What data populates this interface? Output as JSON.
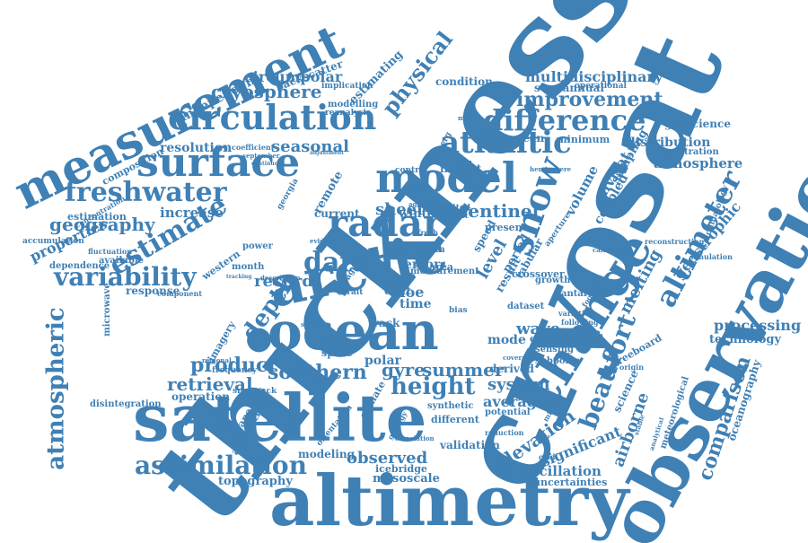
{
  "accent_color": "#3f80b5",
  "background_color": "#ffffff",
  "words": [
    "thickness",
    "cryosat",
    "observation",
    "altimetry",
    "satellite",
    "arctic",
    "ocean",
    "measurement",
    "change",
    "model",
    "radar",
    "surface",
    "circulation",
    "snow",
    "difference",
    "altimeter",
    "freshwater",
    "atlantic",
    "estimate",
    "variability",
    "assimilation",
    "atmospheric",
    "beaufort",
    "data",
    "depth",
    "height",
    "physical",
    "improvement",
    "multidisciplinary",
    "cryosphere",
    "product",
    "retrieval",
    "southern",
    "comparison",
    "elevation",
    "geography",
    "sentinel",
    "melting",
    "airborne",
    "oceanography",
    "processing",
    "technology",
    "topography",
    "observed",
    "seasonal",
    "resolution",
    "increase",
    "estimation",
    "properties",
    "record",
    "sheet",
    "gyre",
    "summer",
    "system",
    "average",
    "wave",
    "mode",
    "level",
    "envisat",
    "volume",
    "geostrophic",
    "distribution",
    "atmosphere",
    "geoscience",
    "climatology",
    "oscillation",
    "uncertainties",
    "mesoscale",
    "icebridge",
    "significant",
    "freeboard",
    "science",
    "meteorological",
    "condition",
    "semiannual",
    "operational",
    "european",
    "coupled",
    "sampling",
    "minimum",
    "penetration",
    "independent",
    "backscatter",
    "circumpolar",
    "estimating",
    "implication",
    "modelling",
    "reanalysis",
    "composition",
    "coefficient",
    "concentration",
    "accumulation",
    "dependence",
    "available",
    "fluctuation",
    "microwave",
    "response",
    "component",
    "operation",
    "disintegration",
    "antarctica",
    "modeling",
    "validation",
    "different",
    "synthetic",
    "potential",
    "derived",
    "subpolar",
    "sensing",
    "echoes",
    "dataset",
    "antarctic",
    "growth",
    "crossover",
    "simulation",
    "reconstruction",
    "calibrated",
    "aperture",
    "present",
    "speed",
    "period",
    "result",
    "tabular",
    "western",
    "month",
    "power",
    "regional",
    "imagery",
    "snowpack",
    "analysis",
    "polar",
    "basal",
    "space",
    "track",
    "floe",
    "time",
    "drift",
    "error",
    "mean",
    "area",
    "limited",
    "extent",
    "control",
    "impact",
    "winter",
    "current",
    "remote",
    "georgia",
    "agency",
    "fresh",
    "iceberg",
    "concentration",
    "frequency",
    "statistic",
    "orientation",
    "climate",
    "reduction",
    "correlation",
    "geology",
    "forecast",
    "storage",
    "strait",
    "coverage",
    "effective",
    "following",
    "variation",
    "footprint",
    "bias",
    "ocean",
    "ice",
    "sea",
    "model",
    "measurement",
    "mas",
    "hemisphere",
    "september",
    "adjustment",
    "continuous",
    "increased",
    "tracking",
    "description",
    "evidence",
    "provide",
    "feature",
    "inflow",
    "northern",
    "rate",
    "laser",
    "return",
    "surface",
    "melt",
    "shelf",
    "scale",
    "trend",
    "land",
    "water",
    "salinity",
    "multiyear",
    "variability",
    "waveform",
    "retracking",
    "uncertain",
    "assessment",
    "multivariate",
    "annual",
    "grid",
    "stable",
    "analytical",
    "convergence",
    "deviation",
    "mission",
    "origin",
    "location",
    "global"
  ]
}
